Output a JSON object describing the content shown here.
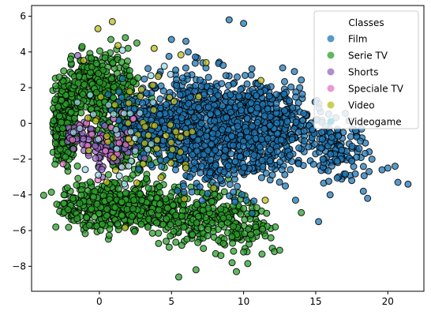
{
  "chart_data": {
    "type": "scatter",
    "title": "",
    "xlabel": "",
    "ylabel": "",
    "xlim": [
      -4.7,
      22.5
    ],
    "ylim": [
      -9.4,
      6.6
    ],
    "xticks": [
      0,
      5,
      10,
      15,
      20
    ],
    "yticks": [
      -8,
      -6,
      -4,
      -2,
      0,
      2,
      4,
      6
    ],
    "grid": false,
    "legend": {
      "title": "Classes",
      "placement": "top-right",
      "entries": [
        "Film",
        "Serie TV",
        "Shorts",
        "Speciale TV",
        "Video",
        "Videogame"
      ]
    },
    "colors": {
      "Film": "#1f77b4",
      "Serie TV": "#2ca02c",
      "Shorts": "#9467bd",
      "Speciale TV": "#e377c2",
      "Video": "#bcbd22",
      "Videogame": "#9edae5"
    },
    "marker_alpha": 0.75,
    "marker_edge": "#000000",
    "series": [
      {
        "name": "Film",
        "clusters": [
          {
            "x": [
              5.0,
              12.0
            ],
            "y": [
              -4.0,
              3.0
            ],
            "n": 550
          },
          {
            "x": [
              9.0,
              15.0
            ],
            "y": [
              -3.0,
              2.5
            ],
            "n": 380
          },
          {
            "x": [
              14.0,
              18.5
            ],
            "y": [
              -3.0,
              0.5
            ],
            "n": 130
          },
          {
            "x": [
              3.0,
              8.0
            ],
            "y": [
              -3.0,
              3.5
            ],
            "n": 260
          },
          {
            "x": [
              1.0,
              5.0
            ],
            "y": [
              -2.0,
              2.0
            ],
            "n": 150
          }
        ],
        "points": [
          {
            "x": 9.0,
            "y": 5.8
          },
          {
            "x": 10.0,
            "y": 5.6
          },
          {
            "x": 6.0,
            "y": 4.6
          },
          {
            "x": 5.0,
            "y": 4.7
          },
          {
            "x": 20.5,
            "y": -2.4
          },
          {
            "x": 20.7,
            "y": -3.3
          },
          {
            "x": 21.4,
            "y": -3.4
          },
          {
            "x": 19.6,
            "y": -2.6
          },
          {
            "x": 20.0,
            "y": -2.5
          },
          {
            "x": 18.6,
            "y": -4.2
          },
          {
            "x": 18.3,
            "y": -3.8
          },
          {
            "x": 18.7,
            "y": -2.7
          },
          {
            "x": 18.9,
            "y": -2.0
          },
          {
            "x": 18.1,
            "y": -1.0
          },
          {
            "x": 17.5,
            "y": -3.2
          },
          {
            "x": 16.0,
            "y": -4.0
          },
          {
            "x": 15.2,
            "y": -5.5
          },
          {
            "x": 13.6,
            "y": -4.3
          },
          {
            "x": 15.5,
            "y": -2.0
          },
          {
            "x": 16.8,
            "y": -1.5
          }
        ]
      },
      {
        "name": "Serie TV",
        "clusters": [
          {
            "x": [
              -3.2,
              -1.5
            ],
            "y": [
              -2.2,
              2.2
            ],
            "n": 450
          },
          {
            "x": [
              -2.5,
              2.5
            ],
            "y": [
              0.0,
              4.0
            ],
            "n": 350
          },
          {
            "x": [
              -3.0,
              5.0
            ],
            "y": [
              -6.0,
              -3.3
            ],
            "n": 480
          },
          {
            "x": [
              3.0,
              11.0
            ],
            "y": [
              -7.0,
              -3.5
            ],
            "n": 260
          },
          {
            "x": [
              0.0,
              5.0
            ],
            "y": [
              -3.5,
              1.5
            ],
            "n": 180
          },
          {
            "x": [
              8.0,
              12.0
            ],
            "y": [
              -7.5,
              -4.0
            ],
            "n": 70
          }
        ],
        "points": [
          {
            "x": 5.5,
            "y": -8.6
          },
          {
            "x": 6.7,
            "y": -8.2
          },
          {
            "x": 9.2,
            "y": -7.8
          },
          {
            "x": 9.5,
            "y": -8.3
          },
          {
            "x": 10.0,
            "y": -7.2
          },
          {
            "x": 12.5,
            "y": -7.1
          },
          {
            "x": 11.5,
            "y": -6.3
          },
          {
            "x": 12.2,
            "y": -5.8
          },
          {
            "x": 14.0,
            "y": -5.0
          },
          {
            "x": 0.8,
            "y": 4.7
          },
          {
            "x": -1.2,
            "y": 4.3
          },
          {
            "x": 1.8,
            "y": 4.8
          },
          {
            "x": -2.0,
            "y": 3.6
          },
          {
            "x": 2.6,
            "y": 4.5
          }
        ]
      },
      {
        "name": "Shorts",
        "clusters": [
          {
            "x": [
              -1.2,
              2.5
            ],
            "y": [
              -2.6,
              0.2
            ],
            "n": 70
          },
          {
            "x": [
              -3.0,
              -0.5
            ],
            "y": [
              -1.5,
              0.5
            ],
            "n": 25
          }
        ],
        "points": [
          {
            "x": -1.5,
            "y": 3.8
          },
          {
            "x": 0.2,
            "y": -3.0
          }
        ]
      },
      {
        "name": "Speciale TV",
        "clusters": [
          {
            "x": [
              -2.5,
              3.0
            ],
            "y": [
              -3.0,
              1.0
            ],
            "n": 22
          }
        ],
        "points": [
          {
            "x": 0.8,
            "y": -1.8
          },
          {
            "x": 1.5,
            "y": -2.4
          }
        ]
      },
      {
        "name": "Video",
        "clusters": [
          {
            "x": [
              -2.0,
              9.0
            ],
            "y": [
              -4.5,
              3.5
            ],
            "n": 55
          }
        ],
        "points": [
          {
            "x": 0.9,
            "y": 5.7
          },
          {
            "x": -0.1,
            "y": 5.3
          },
          {
            "x": 3.8,
            "y": 4.2
          },
          {
            "x": 11.2,
            "y": 2.4
          },
          {
            "x": 7.4,
            "y": 3.4
          },
          {
            "x": 11.5,
            "y": -4.3
          },
          {
            "x": 6.0,
            "y": -2.5
          }
        ]
      },
      {
        "name": "Videogame",
        "clusters": [
          {
            "x": [
              -3.0,
              6.0
            ],
            "y": [
              -3.5,
              3.0
            ],
            "n": 30
          }
        ],
        "points": [
          {
            "x": 1.6,
            "y": 4.1
          },
          {
            "x": 4.5,
            "y": 3.2
          }
        ]
      }
    ]
  }
}
